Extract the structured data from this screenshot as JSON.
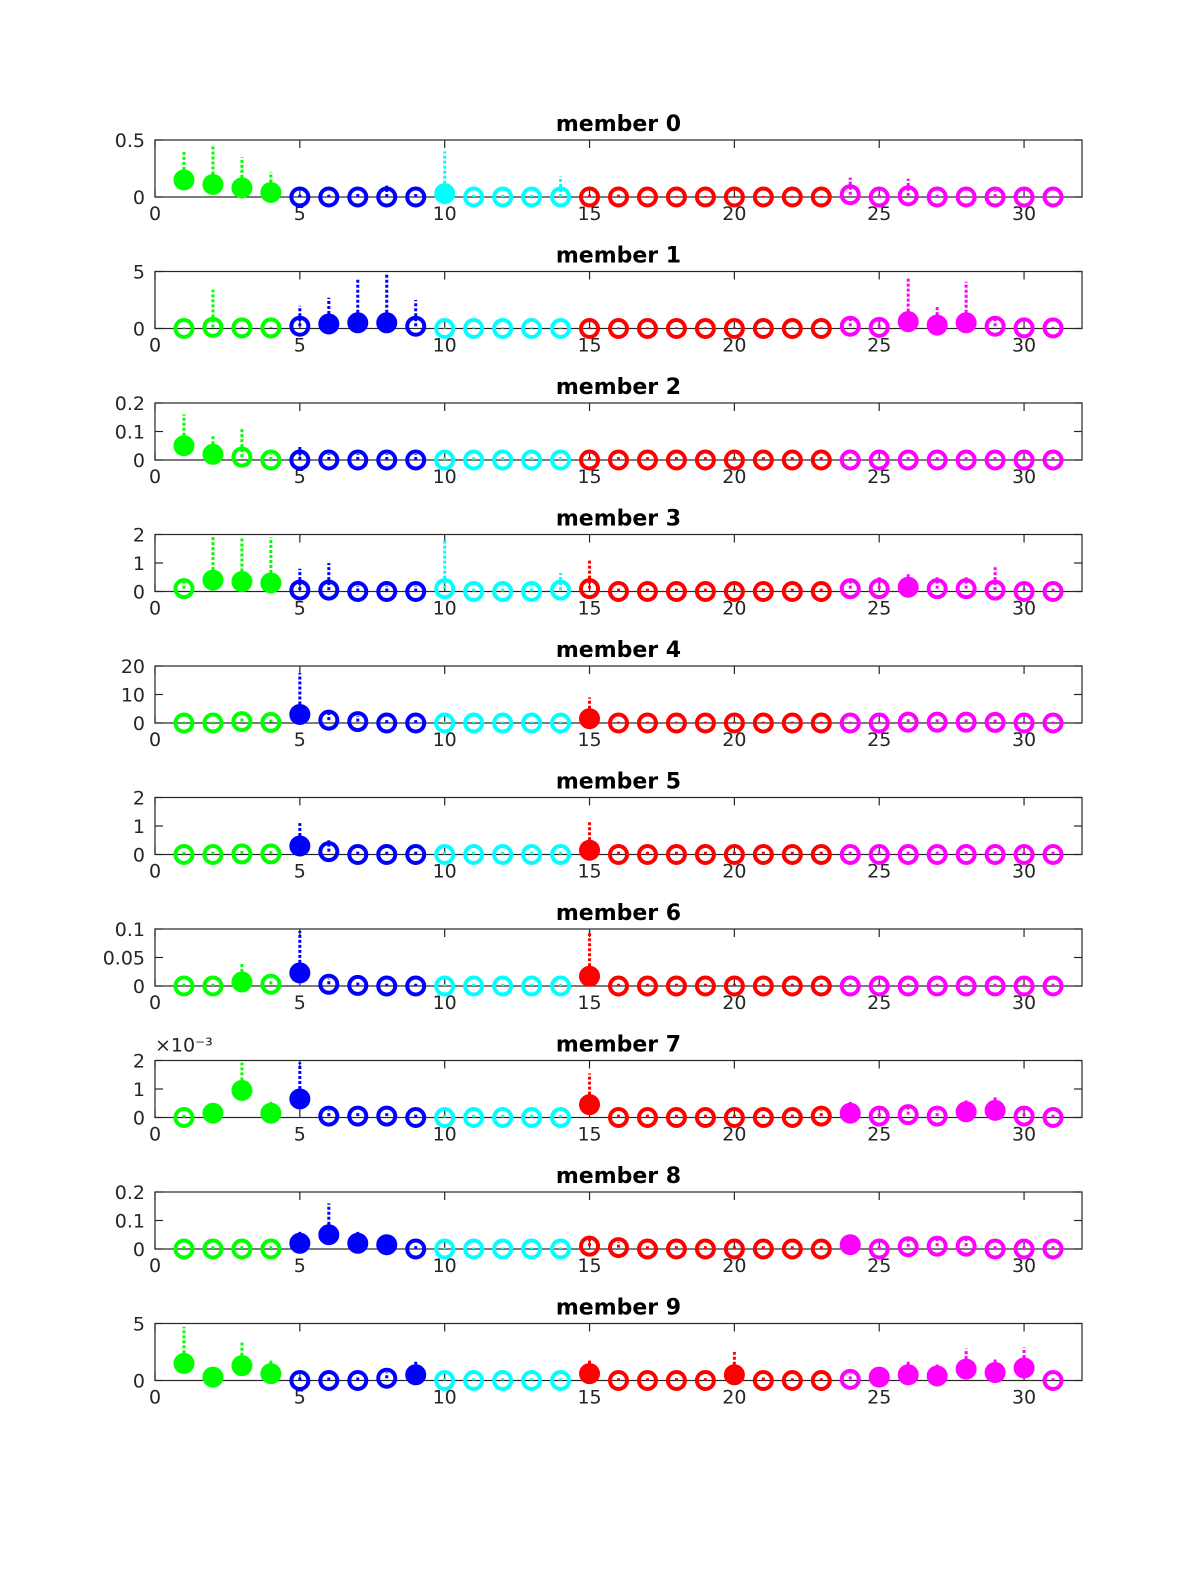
{
  "chart_data": [
    {
      "type": "scatter",
      "title": "member 0",
      "xlim": [
        0,
        32
      ],
      "ylim": [
        0,
        0.5
      ],
      "yticks": [
        0,
        0.5
      ],
      "xticks": [
        0,
        5,
        10,
        15,
        20,
        25,
        30
      ],
      "exponent_label": "",
      "x": [
        1,
        2,
        3,
        4,
        5,
        6,
        7,
        8,
        9,
        10,
        11,
        12,
        13,
        14,
        15,
        16,
        17,
        18,
        19,
        20,
        21,
        22,
        23,
        24,
        25,
        26,
        27,
        28,
        29,
        30,
        31
      ],
      "y": [
        0.15,
        0.11,
        0.08,
        0.04,
        0,
        0,
        0,
        0,
        0,
        0.03,
        0,
        0,
        0,
        0,
        0,
        0,
        0,
        0,
        0,
        0,
        0,
        0,
        0,
        0.02,
        0,
        0.01,
        0,
        0,
        0,
        0,
        0
      ],
      "err_up": [
        0.25,
        0.35,
        0.27,
        0.18,
        0.02,
        0.02,
        0.03,
        0.1,
        0.03,
        0.37,
        0.02,
        0.02,
        0.02,
        0.18,
        0.02,
        0.02,
        0.01,
        0.01,
        0.01,
        0.01,
        0.01,
        0.01,
        0.01,
        0.15,
        0.02,
        0.15,
        0.02,
        0.01,
        0.05,
        0.01,
        0.01
      ]
    },
    {
      "type": "scatter",
      "title": "member 1",
      "xlim": [
        0,
        32
      ],
      "ylim": [
        0,
        5
      ],
      "yticks": [
        0,
        5
      ],
      "xticks": [
        0,
        5,
        10,
        15,
        20,
        25,
        30
      ],
      "exponent_label": "",
      "x": [
        1,
        2,
        3,
        4,
        5,
        6,
        7,
        8,
        9,
        10,
        11,
        12,
        13,
        14,
        15,
        16,
        17,
        18,
        19,
        20,
        21,
        22,
        23,
        24,
        25,
        26,
        27,
        28,
        29,
        30,
        31
      ],
      "y": [
        0,
        0.1,
        0.05,
        0.05,
        0.2,
        0.4,
        0.5,
        0.5,
        0.2,
        0,
        0,
        0,
        0,
        0,
        0,
        0,
        0,
        0,
        0,
        0,
        0,
        0,
        0,
        0.2,
        0.1,
        0.6,
        0.3,
        0.5,
        0.2,
        0.05,
        0.05
      ],
      "err_up": [
        0.1,
        3.3,
        0.1,
        0.1,
        1.8,
        2.3,
        3.9,
        4.3,
        2.3,
        0.1,
        0.1,
        0.1,
        0.1,
        0.1,
        0.1,
        0.1,
        0.1,
        0.1,
        0.1,
        0.1,
        0.1,
        0.1,
        0.1,
        0.8,
        0.6,
        3.9,
        1.6,
        3.6,
        0.6,
        0.1,
        0.1
      ]
    },
    {
      "type": "scatter",
      "title": "member 2",
      "xlim": [
        0,
        32
      ],
      "ylim": [
        0,
        0.2
      ],
      "yticks": [
        0,
        0.1,
        0.2
      ],
      "xticks": [
        0,
        5,
        10,
        15,
        20,
        25,
        30
      ],
      "exponent_label": "",
      "x": [
        1,
        2,
        3,
        4,
        5,
        6,
        7,
        8,
        9,
        10,
        11,
        12,
        13,
        14,
        15,
        16,
        17,
        18,
        19,
        20,
        21,
        22,
        23,
        24,
        25,
        26,
        27,
        28,
        29,
        30,
        31
      ],
      "y": [
        0.05,
        0.02,
        0.01,
        0,
        0,
        0,
        0,
        0,
        0,
        0,
        0,
        0,
        0,
        0,
        0,
        0,
        0,
        0,
        0,
        0,
        0,
        0,
        0,
        0,
        0,
        0,
        0,
        0,
        0,
        0,
        0
      ],
      "err_up": [
        0.11,
        0.07,
        0.1,
        0.02,
        0.05,
        0.02,
        0.02,
        0.02,
        0.02,
        0.01,
        0.01,
        0.01,
        0.01,
        0.01,
        0.01,
        0.01,
        0.01,
        0.01,
        0.01,
        0.01,
        0.01,
        0.01,
        0.01,
        0.01,
        0.01,
        0.01,
        0.01,
        0.01,
        0.01,
        0.01,
        0.01
      ]
    },
    {
      "type": "scatter",
      "title": "member 3",
      "xlim": [
        0,
        32
      ],
      "ylim": [
        0,
        2
      ],
      "yticks": [
        0,
        1,
        2
      ],
      "xticks": [
        0,
        5,
        10,
        15,
        20,
        25,
        30
      ],
      "exponent_label": "",
      "x": [
        1,
        2,
        3,
        4,
        5,
        6,
        7,
        8,
        9,
        10,
        11,
        12,
        13,
        14,
        15,
        16,
        17,
        18,
        19,
        20,
        21,
        22,
        23,
        24,
        25,
        26,
        27,
        28,
        29,
        30,
        31
      ],
      "y": [
        0.1,
        0.4,
        0.35,
        0.3,
        0.05,
        0.05,
        0,
        0,
        0,
        0.1,
        0,
        0,
        0,
        0.05,
        0.1,
        0,
        0,
        0,
        0,
        0,
        0,
        0,
        0,
        0.1,
        0.1,
        0.15,
        0.1,
        0.1,
        0.05,
        0,
        0
      ],
      "err_up": [
        0.3,
        1.8,
        1.7,
        1.6,
        0.75,
        0.95,
        0.2,
        0.2,
        0.2,
        1.7,
        0.1,
        0.2,
        0.2,
        0.6,
        1.0,
        0.1,
        0.1,
        0.1,
        0.1,
        0.1,
        0.1,
        0.1,
        0.1,
        0.3,
        0.4,
        0.5,
        0.4,
        0.4,
        0.8,
        0.1,
        0.1
      ]
    },
    {
      "type": "scatter",
      "title": "member 4",
      "xlim": [
        0,
        32
      ],
      "ylim": [
        0,
        20
      ],
      "yticks": [
        0,
        10,
        20
      ],
      "xticks": [
        0,
        5,
        10,
        15,
        20,
        25,
        30
      ],
      "exponent_label": "",
      "x": [
        1,
        2,
        3,
        4,
        5,
        6,
        7,
        8,
        9,
        10,
        11,
        12,
        13,
        14,
        15,
        16,
        17,
        18,
        19,
        20,
        21,
        22,
        23,
        24,
        25,
        26,
        27,
        28,
        29,
        30,
        31
      ],
      "y": [
        0,
        0,
        0.5,
        0.2,
        3,
        1,
        0.5,
        0,
        0,
        0,
        0,
        0,
        0,
        0,
        1.5,
        0,
        0,
        0,
        0,
        0,
        0,
        0,
        0,
        0,
        0,
        0.3,
        0.3,
        0.3,
        0.2,
        0,
        0
      ],
      "err_up": [
        0.5,
        0.5,
        1.5,
        1,
        14.5,
        3,
        2,
        1,
        1,
        0.5,
        0.5,
        0.5,
        0.5,
        0.5,
        7.5,
        0.5,
        0.5,
        0.5,
        0.5,
        0.5,
        0.5,
        0.5,
        0.5,
        0.5,
        0.5,
        1,
        1,
        1,
        1,
        0.5,
        0.5
      ]
    },
    {
      "type": "scatter",
      "title": "member 5",
      "xlim": [
        0,
        32
      ],
      "ylim": [
        0,
        2
      ],
      "yticks": [
        0,
        1,
        2
      ],
      "xticks": [
        0,
        5,
        10,
        15,
        20,
        25,
        30
      ],
      "exponent_label": "",
      "x": [
        1,
        2,
        3,
        4,
        5,
        6,
        7,
        8,
        9,
        10,
        11,
        12,
        13,
        14,
        15,
        16,
        17,
        18,
        19,
        20,
        21,
        22,
        23,
        24,
        25,
        26,
        27,
        28,
        29,
        30,
        31
      ],
      "y": [
        0,
        0,
        0.02,
        0.02,
        0.3,
        0.1,
        0,
        0,
        0,
        0,
        0,
        0,
        0,
        0,
        0.15,
        0,
        0,
        0,
        0,
        0,
        0,
        0,
        0,
        0,
        0,
        0,
        0,
        0,
        0,
        0,
        0
      ],
      "err_up": [
        0.1,
        0.1,
        0.15,
        0.15,
        0.8,
        0.4,
        0.1,
        0.1,
        0.1,
        0.1,
        0.1,
        0.1,
        0.1,
        0.1,
        1.05,
        0.1,
        0.1,
        0.1,
        0.1,
        0.1,
        0.1,
        0.1,
        0.1,
        0.1,
        0.1,
        0.1,
        0.1,
        0.1,
        0.1,
        0.1,
        0.1
      ]
    },
    {
      "type": "scatter",
      "title": "member 6",
      "xlim": [
        0,
        32
      ],
      "ylim": [
        0,
        0.1
      ],
      "yticks": [
        0,
        0.05,
        0.1
      ],
      "xticks": [
        0,
        5,
        10,
        15,
        20,
        25,
        30
      ],
      "exponent_label": "",
      "x": [
        1,
        2,
        3,
        4,
        5,
        6,
        7,
        8,
        9,
        10,
        11,
        12,
        13,
        14,
        15,
        16,
        17,
        18,
        19,
        20,
        21,
        22,
        23,
        24,
        25,
        26,
        27,
        28,
        29,
        30,
        31
      ],
      "y": [
        0,
        0,
        0.007,
        0.003,
        0.023,
        0.003,
        0.001,
        0,
        0,
        0,
        0,
        0,
        0,
        0,
        0.017,
        0,
        0,
        0,
        0,
        0,
        0,
        0,
        0,
        0,
        0,
        0,
        0,
        0,
        0,
        0,
        0
      ],
      "err_up": [
        0.004,
        0.004,
        0.035,
        0.01,
        0.08,
        0.01,
        0.005,
        0.004,
        0.004,
        0.004,
        0.004,
        0.004,
        0.004,
        0.004,
        0.09,
        0.004,
        0.004,
        0.004,
        0.004,
        0.004,
        0.004,
        0.004,
        0.004,
        0.004,
        0.004,
        0.004,
        0.004,
        0.004,
        0.004,
        0.004,
        0.004
      ]
    },
    {
      "type": "scatter",
      "title": "member 7",
      "xlim": [
        0,
        32
      ],
      "ylim": [
        0,
        0.002
      ],
      "yticks": [
        0,
        0.001,
        0.002
      ],
      "ytick_labels": [
        "0",
        "1",
        "2"
      ],
      "xticks": [
        0,
        5,
        10,
        15,
        20,
        25,
        30
      ],
      "exponent_label": "×10⁻³",
      "x": [
        1,
        2,
        3,
        4,
        5,
        6,
        7,
        8,
        9,
        10,
        11,
        12,
        13,
        14,
        15,
        16,
        17,
        18,
        19,
        20,
        21,
        22,
        23,
        24,
        25,
        26,
        27,
        28,
        29,
        30,
        31
      ],
      "y": [
        0,
        0.00015,
        0.00095,
        0.00015,
        0.00065,
        5e-05,
        5e-05,
        5e-05,
        0,
        0,
        0,
        0,
        0,
        0,
        0.00045,
        0,
        0,
        0,
        0,
        0,
        0,
        0,
        5e-05,
        0.00015,
        5e-05,
        0.0001,
        5e-05,
        0.0002,
        0.00025,
        5e-05,
        0
      ],
      "err_up": [
        0.0001,
        0.0003,
        0.0019,
        0.0004,
        0.0015,
        0.0002,
        0.0001,
        0.0001,
        0.0001,
        0.0001,
        0.0001,
        0.0001,
        0.0001,
        0.0001,
        0.0011,
        0.0001,
        0.0001,
        0.0001,
        0.0001,
        0.0001,
        0.0001,
        0.0001,
        0.0002,
        0.0004,
        0.0002,
        0.0003,
        0.0002,
        0.0004,
        0.0005,
        0.0002,
        0.0001
      ]
    },
    {
      "type": "scatter",
      "title": "member 8",
      "xlim": [
        0,
        32
      ],
      "ylim": [
        0,
        0.2
      ],
      "yticks": [
        0,
        0.1,
        0.2
      ],
      "xticks": [
        0,
        5,
        10,
        15,
        20,
        25,
        30
      ],
      "exponent_label": "",
      "x": [
        1,
        2,
        3,
        4,
        5,
        6,
        7,
        8,
        9,
        10,
        11,
        12,
        13,
        14,
        15,
        16,
        17,
        18,
        19,
        20,
        21,
        22,
        23,
        24,
        25,
        26,
        27,
        28,
        29,
        30,
        31
      ],
      "y": [
        0,
        0,
        0,
        0,
        0.02,
        0.05,
        0.02,
        0.015,
        0,
        0,
        0,
        0,
        0,
        0,
        0.01,
        0.005,
        0,
        0,
        0,
        0,
        0,
        0,
        0,
        0.015,
        0,
        0.008,
        0.01,
        0.01,
        0,
        0,
        0
      ],
      "err_up": [
        0.01,
        0.01,
        0.01,
        0.01,
        0.04,
        0.11,
        0.04,
        0.035,
        0.01,
        0.005,
        0.005,
        0.005,
        0.005,
        0.005,
        0.03,
        0.02,
        0.01,
        0.01,
        0.01,
        0.01,
        0.01,
        0.01,
        0.01,
        0.03,
        0.01,
        0.025,
        0.03,
        0.03,
        0.01,
        0.01,
        0.01
      ]
    },
    {
      "type": "scatter",
      "title": "member 9",
      "xlim": [
        0,
        32
      ],
      "ylim": [
        0,
        5
      ],
      "yticks": [
        0,
        5
      ],
      "xticks": [
        0,
        5,
        10,
        15,
        20,
        25,
        30
      ],
      "exponent_label": "",
      "x": [
        1,
        2,
        3,
        4,
        5,
        6,
        7,
        8,
        9,
        10,
        11,
        12,
        13,
        14,
        15,
        16,
        17,
        18,
        19,
        20,
        21,
        22,
        23,
        24,
        25,
        26,
        27,
        28,
        29,
        30,
        31
      ],
      "y": [
        1.5,
        0.3,
        1.3,
        0.6,
        0,
        0,
        0,
        0.2,
        0.5,
        0,
        0,
        0,
        0,
        0,
        0.6,
        0,
        0,
        0,
        0,
        0.5,
        0,
        0,
        0,
        0.1,
        0.3,
        0.5,
        0.4,
        1,
        0.7,
        1.1,
        0
      ],
      "err_up": [
        3.2,
        0.8,
        2.2,
        1.2,
        0.3,
        0.3,
        0.3,
        0.5,
        1.2,
        0.2,
        0.2,
        0.2,
        0.2,
        0.2,
        1.3,
        0.2,
        0.2,
        0.2,
        0.2,
        2,
        0.3,
        0.2,
        0.2,
        0.5,
        0.8,
        1.2,
        1,
        1.8,
        1.2,
        1.8,
        0.2
      ]
    }
  ],
  "group_colors": {
    "1-4": "#00ff00",
    "5-9": "#0000ff",
    "10-14": "#00ffff",
    "15-23": "#ff0000",
    "24-31": "#ff00ff"
  }
}
